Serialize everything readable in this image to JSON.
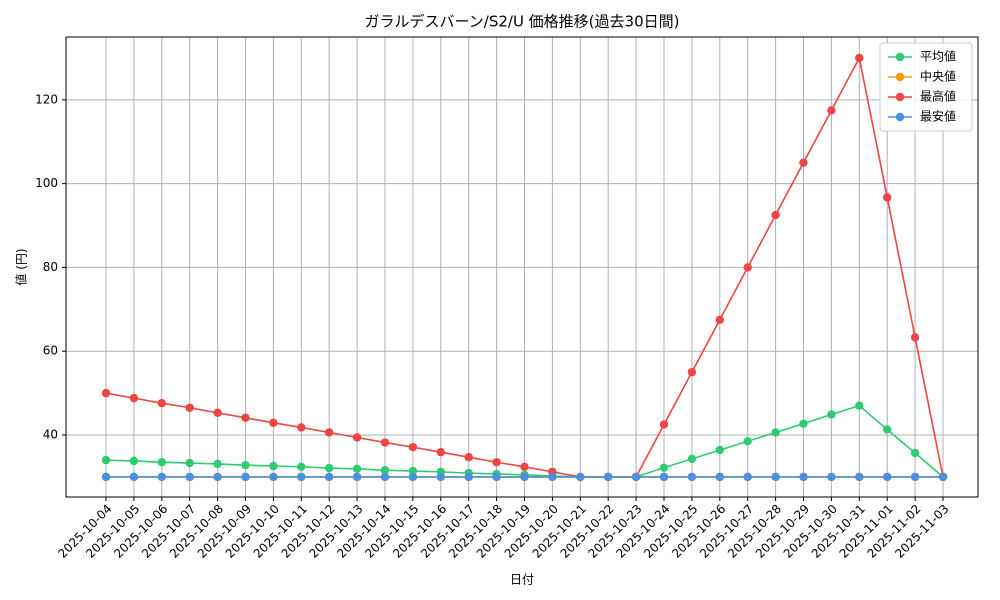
{
  "chart_data": {
    "type": "line",
    "title": "ガラルデスバーン/S2/U 価格推移(過去30日間)",
    "x_label": "日付",
    "y_label": "値 (円)",
    "categories": [
      "2025-10-04",
      "2025-10-05",
      "2025-10-06",
      "2025-10-07",
      "2025-10-08",
      "2025-10-09",
      "2025-10-10",
      "2025-10-11",
      "2025-10-12",
      "2025-10-13",
      "2025-10-14",
      "2025-10-15",
      "2025-10-16",
      "2025-10-17",
      "2025-10-18",
      "2025-10-19",
      "2025-10-20",
      "2025-10-21",
      "2025-10-22",
      "2025-10-23",
      "2025-10-24",
      "2025-10-25",
      "2025-10-26",
      "2025-10-27",
      "2025-10-28",
      "2025-10-29",
      "2025-10-30",
      "2025-10-31",
      "2025-11-01",
      "2025-11-02",
      "2025-11-03"
    ],
    "series": [
      {
        "name": "平均値",
        "color": "#2ecc71",
        "values": [
          34,
          33.8,
          33.5,
          33.3,
          33.1,
          32.8,
          32.6,
          32.4,
          32.1,
          31.9,
          31.6,
          31.4,
          31.2,
          30.9,
          30.7,
          30.5,
          30.2,
          30,
          30,
          30,
          32.2,
          34.3,
          36.4,
          38.5,
          40.6,
          42.7,
          44.9,
          47,
          41.3,
          35.7,
          30
        ]
      },
      {
        "name": "中央値",
        "color": "#f39c12",
        "values": [
          30,
          30,
          30,
          30,
          30,
          30,
          30,
          30,
          30,
          30,
          30,
          30,
          30,
          30,
          30,
          30,
          30,
          30,
          30,
          30,
          30,
          30,
          30,
          30,
          30,
          30,
          30,
          30,
          30,
          30,
          30
        ]
      },
      {
        "name": "最高値",
        "color": "#ef4444",
        "values": [
          50,
          48.8,
          47.6,
          46.5,
          45.3,
          44.1,
          42.9,
          41.8,
          40.6,
          39.4,
          38.2,
          37.1,
          35.9,
          34.7,
          33.5,
          32.4,
          31.2,
          30,
          30,
          30,
          42.5,
          55,
          67.5,
          80,
          92.5,
          105,
          117.5,
          130,
          96.7,
          63.3,
          30
        ]
      },
      {
        "name": "最安値",
        "color": "#4a90e2",
        "values": [
          30,
          30,
          30,
          30,
          30,
          30,
          30,
          30,
          30,
          30,
          30,
          30,
          30,
          30,
          30,
          30,
          30,
          30,
          30,
          30,
          30,
          30,
          30,
          30,
          30,
          30,
          30,
          30,
          30,
          30,
          30
        ]
      }
    ],
    "ylim": [
      25.2,
      135
    ],
    "yticks": [
      40,
      60,
      80,
      100,
      120
    ],
    "grid": true,
    "legend": "upper right"
  }
}
